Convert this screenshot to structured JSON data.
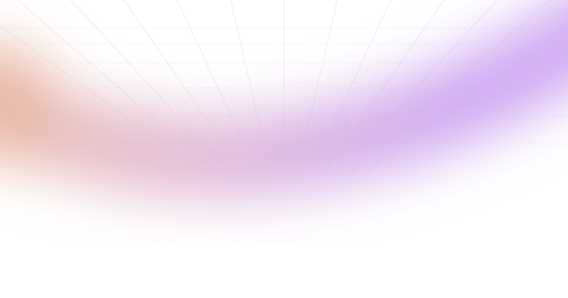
{
  "background": {
    "base_color": "#ffffff",
    "glow_colors": {
      "warm": "#eab8a4",
      "pink": "#dcb0d6",
      "purple": "#c89cf0"
    },
    "grid_line_color": "#d8d8e4"
  }
}
